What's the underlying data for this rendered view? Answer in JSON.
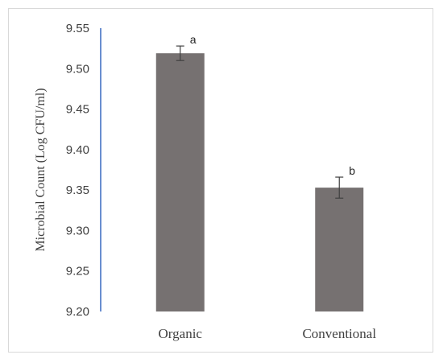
{
  "chart_data": {
    "type": "bar",
    "categories": [
      "Organic",
      "Conventional"
    ],
    "values": [
      9.519,
      9.353
    ],
    "errors": [
      0.009,
      0.013
    ],
    "significance_letters": [
      "a",
      "b"
    ],
    "ylabel": "Microbial Count (Log CFU/ml)",
    "xlabel": "",
    "ylim": [
      9.2,
      9.55
    ],
    "yticks": [
      "9.20",
      "9.25",
      "9.30",
      "9.35",
      "9.40",
      "9.45",
      "9.50",
      "9.55"
    ],
    "grid": false,
    "bar_color": "#767171",
    "axis_color": "#4472c4"
  }
}
